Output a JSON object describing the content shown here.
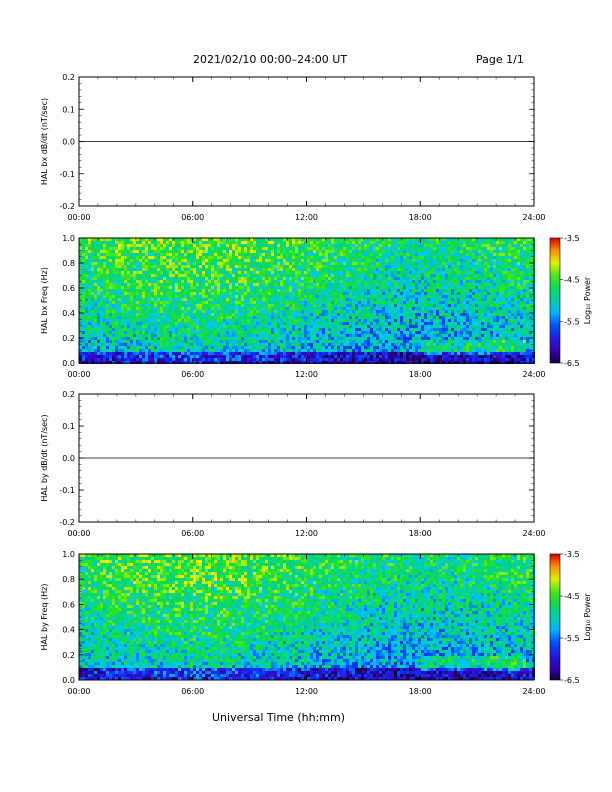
{
  "header": {
    "title": "2021/02/10  00:00–24:00 UT",
    "page": "Page 1/1"
  },
  "footer": {
    "xlabel": "Universal Time (hh:mm)"
  },
  "chart_data": [
    {
      "type": "line",
      "ylabel": "HAL bx dB/dt (nT/sec)",
      "ylim": [
        -0.2,
        0.2
      ],
      "yticks": [
        "0.2",
        "0.1",
        "0.0",
        "-0.1",
        "-0.2"
      ],
      "xticks": [
        "00:00",
        "06:00",
        "12:00",
        "18:00",
        "24:00"
      ],
      "xlim": [
        0,
        24
      ],
      "series": [
        {
          "x": [
            0,
            24
          ],
          "y": [
            0.0,
            0.0
          ]
        }
      ]
    },
    {
      "type": "heatmap",
      "ylabel": "HAL bx Freq (Hz)",
      "ylim": [
        0,
        1.0
      ],
      "yticks": [
        "1.0",
        "0.8",
        "0.6",
        "0.4",
        "0.2",
        "0.0"
      ],
      "xticks": [
        "00:00",
        "06:00",
        "12:00",
        "18:00",
        "24:00"
      ],
      "xlim": [
        0,
        24
      ],
      "colorbar": {
        "label": "Log₁₀ Power",
        "ticks": [
          "-3.5",
          "-4.5",
          "-5.5",
          "-6.5"
        ],
        "range": [
          -6.5,
          -3.5
        ]
      }
    },
    {
      "type": "line",
      "ylabel": "HAL by dB/dt (nT/sec)",
      "ylim": [
        -0.2,
        0.2
      ],
      "yticks": [
        "0.2",
        "0.1",
        "0.0",
        "-0.1",
        "-0.2"
      ],
      "xticks": [
        "00:00",
        "06:00",
        "12:00",
        "18:00",
        "24:00"
      ],
      "xlim": [
        0,
        24
      ],
      "series": [
        {
          "x": [
            0,
            24
          ],
          "y": [
            0.0,
            0.0
          ]
        }
      ]
    },
    {
      "type": "heatmap",
      "ylabel": "HAL by Freq (Hz)",
      "ylim": [
        0,
        1.0
      ],
      "yticks": [
        "1.0",
        "0.8",
        "0.6",
        "0.4",
        "0.2",
        "0.0"
      ],
      "xticks": [
        "00:00",
        "06:00",
        "12:00",
        "18:00",
        "24:00"
      ],
      "xlim": [
        0,
        24
      ],
      "colorbar": {
        "label": "Log₁₀ Power",
        "ticks": [
          "-3.5",
          "-4.5",
          "-5.5",
          "-6.5"
        ],
        "range": [
          -6.5,
          -3.5
        ]
      }
    }
  ]
}
